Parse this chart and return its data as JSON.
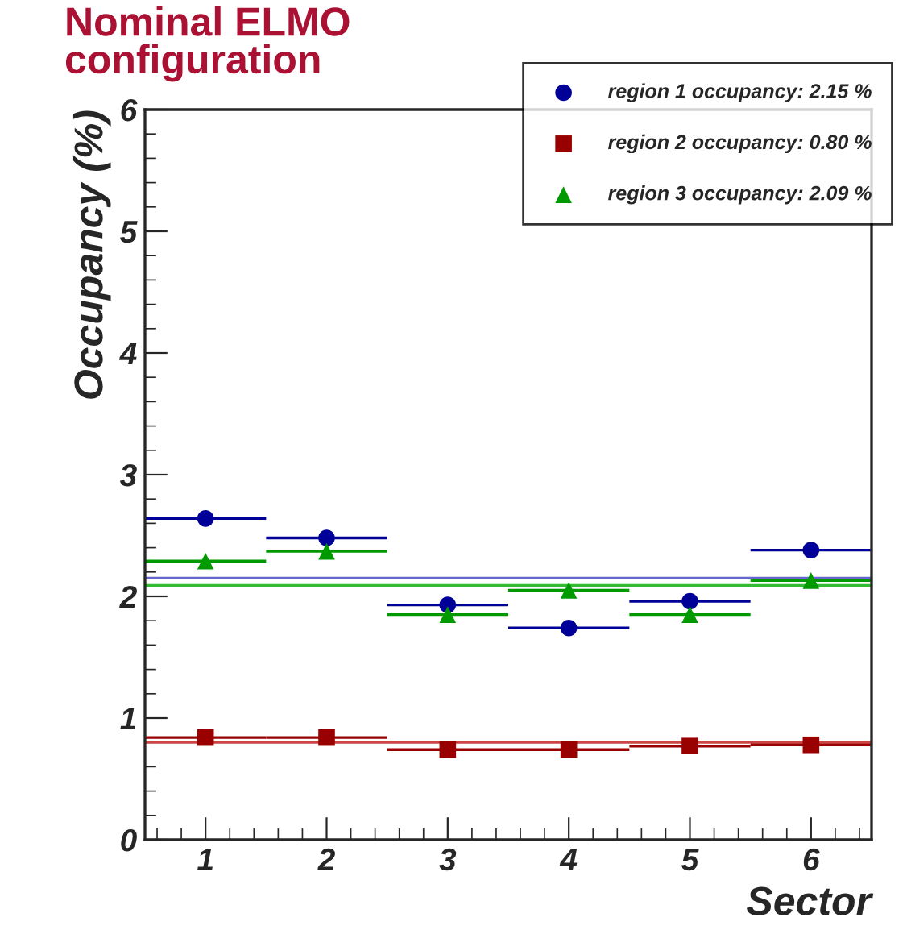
{
  "chart_data": {
    "type": "scatter",
    "title": "Nominal ELMO\nconfiguration",
    "xlabel": "Sector",
    "ylabel": "Occupancy (%)",
    "x": [
      1,
      2,
      3,
      4,
      5,
      6
    ],
    "xlim": [
      0.5,
      6.5
    ],
    "xticks": [
      1,
      2,
      3,
      4,
      5,
      6
    ],
    "ylim": [
      0,
      6
    ],
    "yticks": [
      0,
      1,
      2,
      3,
      4,
      5,
      6
    ],
    "grid": false,
    "legend": "top right",
    "series": [
      {
        "name": "region 1 occupancy: 2.15 %",
        "color": "#000099",
        "marker": "circle",
        "values": [
          2.64,
          2.48,
          1.93,
          1.74,
          1.96,
          2.38
        ],
        "xerrors": [
          0.5,
          0.5,
          0.5,
          0.5,
          0.5,
          0.5
        ]
      },
      {
        "name": "region 2 occupancy: 0.80 %",
        "color": "#990000",
        "marker": "square",
        "values": [
          0.84,
          0.84,
          0.74,
          0.74,
          0.77,
          0.78
        ],
        "xerrors": [
          0.5,
          0.5,
          0.5,
          0.5,
          0.5,
          0.5
        ]
      },
      {
        "name": "region 3 occupancy: 2.09 %",
        "color": "#009900",
        "marker": "triangle",
        "values": [
          2.29,
          2.37,
          1.85,
          2.05,
          1.85,
          2.13
        ],
        "xerrors": [
          0.5,
          0.5,
          0.5,
          0.5,
          0.5,
          0.5
        ]
      }
    ],
    "ref_lines": [
      {
        "axis": "y",
        "value": 2.15,
        "color": "#6666cc"
      },
      {
        "axis": "y",
        "value": 0.8,
        "color": "#cc4444"
      },
      {
        "axis": "y",
        "value": 2.09,
        "color": "#33bb33"
      }
    ]
  }
}
